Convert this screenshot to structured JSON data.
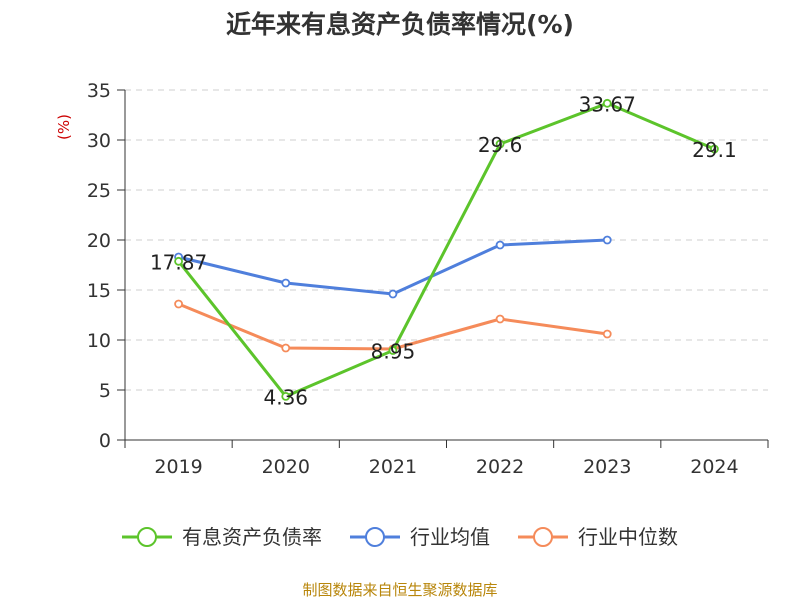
{
  "chart_data": {
    "type": "line",
    "title": "近年来有息资产负债率情况(%)",
    "ylabel": "(%)",
    "categories": [
      "2019",
      "2020",
      "2021",
      "2022",
      "2023",
      "2024"
    ],
    "ylim": [
      0,
      35
    ],
    "yticks": [
      "0",
      "5",
      "10",
      "15",
      "20",
      "25",
      "30",
      "35"
    ],
    "grid": true,
    "legend_position": "bottom",
    "series": [
      {
        "name": "有息资产负债率",
        "color": "#5cc42b",
        "values": [
          17.87,
          4.36,
          8.95,
          29.6,
          33.67,
          29.1
        ],
        "labels": [
          "17.87",
          "4.36",
          "8.95",
          "29.6",
          "33.67",
          "29.1"
        ]
      },
      {
        "name": "行业均值",
        "color": "#4f7fdc",
        "values": [
          18.3,
          15.7,
          14.6,
          19.5,
          20.0,
          null
        ]
      },
      {
        "name": "行业中位数",
        "color": "#f58b5a",
        "values": [
          13.6,
          9.2,
          9.1,
          12.1,
          10.6,
          null
        ]
      }
    ]
  },
  "footer": {
    "source": "制图数据来自恒生聚源数据库"
  }
}
